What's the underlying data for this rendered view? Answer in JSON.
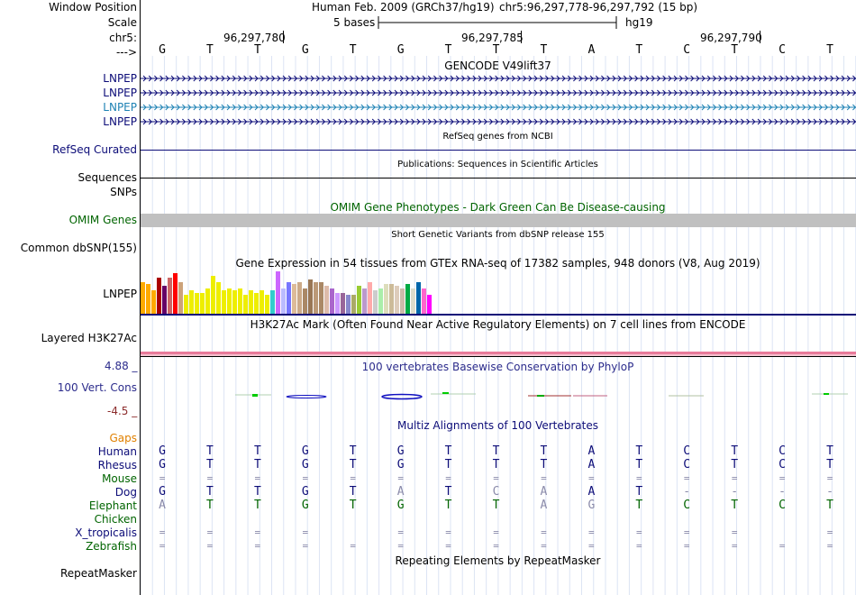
{
  "header": {
    "window_position_label": "Window Position",
    "assembly_title": "Human Feb. 2009 (GRCh37/hg19)",
    "position_range": "chr5:96,297,778-96,297,792 (15 bp)",
    "scale_label": "Scale",
    "scale_text": "5 bases",
    "scale_db": "hg19",
    "chrom_label": "chr5:",
    "coord_1": "96,297,780",
    "coord_2": "96,297,785",
    "coord_3": "96,297,790",
    "strand_label": "--->"
  },
  "reference_bases": [
    "G",
    "T",
    "T",
    "G",
    "T",
    "G",
    "T",
    "T",
    "T",
    "A",
    "T",
    "C",
    "T",
    "C",
    "T"
  ],
  "gencode": {
    "title": "GENCODE V49lift37",
    "transcripts": [
      {
        "label": "LNPEP",
        "color": "#0c0c78"
      },
      {
        "label": "LNPEP",
        "color": "#0c0c78"
      },
      {
        "label": "LNPEP",
        "color": "#1e82b4"
      },
      {
        "label": "LNPEP",
        "color": "#0c0c78"
      }
    ]
  },
  "refseq": {
    "label": "RefSeq Curated",
    "title": "RefSeq genes from NCBI",
    "color": "#0c0c78"
  },
  "publications": {
    "label": "Sequences",
    "title": "Publications: Sequences in Scientific Articles"
  },
  "snps": {
    "label": "SNPs"
  },
  "omim": {
    "label": "OMIM Genes",
    "title": "OMIM Gene Phenotypes - Dark Green Can Be Disease-causing",
    "color": "#006400"
  },
  "dbsnp": {
    "label": "Common dbSNP(155)",
    "title": "Short Genetic Variants from dbSNP release 155"
  },
  "gtex": {
    "label": "LNPEP",
    "title": "Gene Expression in 54 tissues from GTEx RNA-seq of 17382 samples, 948 donors (V8, Aug 2019)",
    "bars": [
      {
        "v": 0.75,
        "c": "#ffaa00"
      },
      {
        "v": 0.7,
        "c": "#ffaa00"
      },
      {
        "v": 0.55,
        "c": "#ffaa00"
      },
      {
        "v": 0.85,
        "c": "#aa0000"
      },
      {
        "v": 0.65,
        "c": "#660066"
      },
      {
        "v": 0.85,
        "c": "#cc6666"
      },
      {
        "v": 0.95,
        "c": "#ff0000"
      },
      {
        "v": 0.75,
        "c": "#cca37a"
      },
      {
        "v": 0.45,
        "c": "#eeee00"
      },
      {
        "v": 0.55,
        "c": "#eeee00"
      },
      {
        "v": 0.5,
        "c": "#eeee00"
      },
      {
        "v": 0.5,
        "c": "#eeee00"
      },
      {
        "v": 0.6,
        "c": "#eeee00"
      },
      {
        "v": 0.9,
        "c": "#eeee00"
      },
      {
        "v": 0.75,
        "c": "#eeee00"
      },
      {
        "v": 0.55,
        "c": "#eeee00"
      },
      {
        "v": 0.6,
        "c": "#eeee00"
      },
      {
        "v": 0.55,
        "c": "#eeee00"
      },
      {
        "v": 0.6,
        "c": "#eeee00"
      },
      {
        "v": 0.45,
        "c": "#eeee00"
      },
      {
        "v": 0.55,
        "c": "#eeee00"
      },
      {
        "v": 0.5,
        "c": "#eeee00"
      },
      {
        "v": 0.55,
        "c": "#eeee00"
      },
      {
        "v": 0.45,
        "c": "#eeee00"
      },
      {
        "v": 0.55,
        "c": "#33cccc"
      },
      {
        "v": 1.0,
        "c": "#cc66ff"
      },
      {
        "v": 0.6,
        "c": "#bbbbff"
      },
      {
        "v": 0.75,
        "c": "#7777ff"
      },
      {
        "v": 0.7,
        "c": "#ddbb99"
      },
      {
        "v": 0.75,
        "c": "#ccaa88"
      },
      {
        "v": 0.6,
        "c": "#aa8866"
      },
      {
        "v": 0.8,
        "c": "#997755"
      },
      {
        "v": 0.75,
        "c": "#bb9977"
      },
      {
        "v": 0.75,
        "c": "#aa8866"
      },
      {
        "v": 0.65,
        "c": "#ddbbaa"
      },
      {
        "v": 0.6,
        "c": "#aa66cc"
      },
      {
        "v": 0.5,
        "c": "#cc99ff"
      },
      {
        "v": 0.5,
        "c": "#996699"
      },
      {
        "v": 0.45,
        "c": "#8888cc"
      },
      {
        "v": 0.45,
        "c": "#aaaa66"
      },
      {
        "v": 0.65,
        "c": "#99cc33"
      },
      {
        "v": 0.6,
        "c": "#bb99cc"
      },
      {
        "v": 0.75,
        "c": "#ffaaaa"
      },
      {
        "v": 0.55,
        "c": "#cccccc"
      },
      {
        "v": 0.6,
        "c": "#aaeeaa"
      },
      {
        "v": 0.7,
        "c": "#ddddbb"
      },
      {
        "v": 0.7,
        "c": "#ccbb99"
      },
      {
        "v": 0.65,
        "c": "#ddccbb"
      },
      {
        "v": 0.6,
        "c": "#ccbbaa"
      },
      {
        "v": 0.7,
        "c": "#00aa44"
      },
      {
        "v": 0.6,
        "c": "#ddddcc"
      },
      {
        "v": 0.75,
        "c": "#0066aa"
      },
      {
        "v": 0.6,
        "c": "#ff66cc"
      },
      {
        "v": 0.45,
        "c": "#ff00ff"
      }
    ]
  },
  "h3k27ac": {
    "label": "Layered H3K27Ac",
    "title": "H3K27Ac Mark (Often Found Near Active Regulatory Elements) on 7 cell lines from ENCODE"
  },
  "phylop": {
    "label": "100 Vert. Cons",
    "title": "100 vertebrates Basewise Conservation by PhyloP",
    "max": "4.88 _",
    "min": "-4.5 _",
    "color": "#2c2c8c",
    "min_color": "#8c2c2c"
  },
  "multiz": {
    "title": "Multiz Alignments of 100 Vertebrates",
    "gaps_label": "Gaps",
    "species": [
      {
        "name": "Human",
        "color": "#0c0c78",
        "bases": [
          "G",
          "T",
          "T",
          "G",
          "T",
          "G",
          "T",
          "T",
          "T",
          "A",
          "T",
          "C",
          "T",
          "C",
          "T"
        ],
        "faint": []
      },
      {
        "name": "Rhesus",
        "color": "#0c0c78",
        "bases": [
          "G",
          "T",
          "T",
          "G",
          "T",
          "G",
          "T",
          "T",
          "T",
          "A",
          "T",
          "C",
          "T",
          "C",
          "T"
        ],
        "faint": []
      },
      {
        "name": "Mouse",
        "color": "#006400",
        "bases": [
          "=",
          "=",
          "=",
          "=",
          "=",
          "=",
          "=",
          "=",
          "=",
          "=",
          "=",
          "=",
          "=",
          "=",
          "="
        ],
        "faint": [
          0,
          1,
          2,
          3,
          4,
          5,
          6,
          7,
          8,
          9,
          10,
          11,
          12,
          13,
          14
        ]
      },
      {
        "name": "Dog",
        "color": "#0c0c78",
        "bases": [
          "G",
          "T",
          "T",
          "G",
          "T",
          "A",
          "T",
          "C",
          "A",
          "A",
          "T",
          "-",
          "-",
          "-",
          "-"
        ],
        "faint": [
          5,
          7,
          8,
          11,
          12,
          13,
          14
        ]
      },
      {
        "name": "Elephant",
        "color": "#006400",
        "bases": [
          "A",
          "T",
          "T",
          "G",
          "T",
          "G",
          "T",
          "T",
          "A",
          "G",
          "T",
          "C",
          "T",
          "C",
          "T"
        ],
        "faint": [
          0,
          8,
          9
        ]
      },
      {
        "name": "Chicken",
        "color": "#006400",
        "bases": [
          "",
          "",
          "",
          "",
          "",
          "",
          "",
          "",
          "",
          "",
          "",
          "",
          "",
          "",
          ""
        ],
        "faint": []
      },
      {
        "name": "X_tropicalis",
        "color": "#0c0c78",
        "bases": [
          "=",
          "=",
          "=",
          "=",
          "",
          "=",
          "=",
          "=",
          "=",
          "=",
          "=",
          "=",
          "=",
          "",
          "="
        ],
        "faint": [
          0,
          1,
          2,
          3,
          4,
          5,
          6,
          7,
          8,
          9,
          10,
          11,
          12,
          13,
          14
        ]
      },
      {
        "name": "Zebrafish",
        "color": "#006400",
        "bases": [
          "=",
          "=",
          "=",
          "=",
          "=",
          "=",
          "=",
          "=",
          "=",
          "=",
          "=",
          "=",
          "=",
          "=",
          "="
        ],
        "faint": [
          0,
          1,
          2,
          3,
          4,
          5,
          6,
          7,
          8,
          9,
          10,
          11,
          12,
          13,
          14
        ]
      }
    ]
  },
  "repeatmasker": {
    "label": "RepeatMasker",
    "title": "Repeating Elements by RepeatMasker"
  }
}
